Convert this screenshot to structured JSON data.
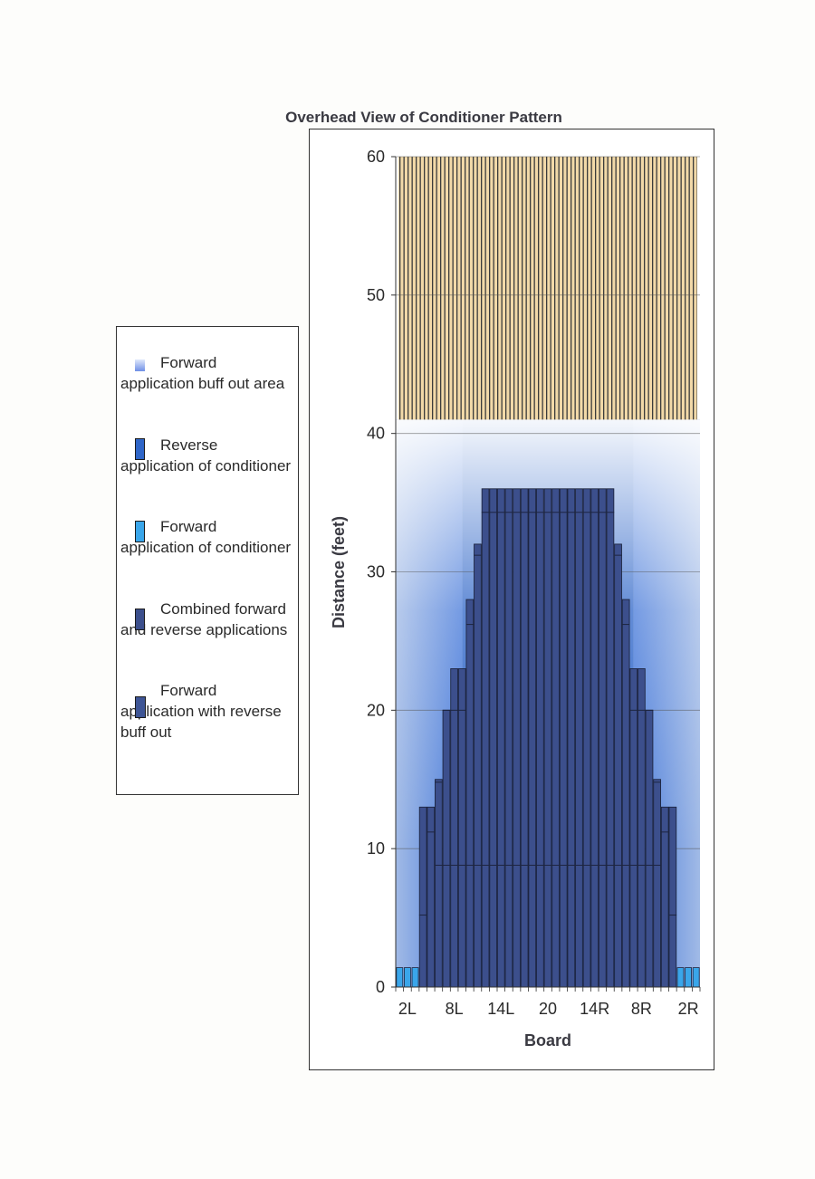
{
  "page": {
    "title": "Overhead View of Conditioner Pattern"
  },
  "legend": {
    "items": [
      {
        "label": "Forward application buff out area",
        "color": "#6f8fe6"
      },
      {
        "label": "Reverse application of conditioner",
        "color": "#2f66c8"
      },
      {
        "label": "Forward application of conditioner",
        "color": "#3aa6ea"
      },
      {
        "label": "Combined forward and reverse applications",
        "color": "#3c4f8c"
      },
      {
        "label": "Forward application with reverse buff out",
        "color": "#3e5595"
      }
    ]
  },
  "chart_data": {
    "type": "bar",
    "title": "Overhead View of Conditioner Pattern",
    "xlabel": "Board",
    "ylabel": "Distance (feet)",
    "ylim": [
      0,
      60
    ],
    "yticks": [
      0,
      10,
      20,
      30,
      40,
      50,
      60
    ],
    "grid": "horizontal",
    "legend_position": "left",
    "x_tick_labels": [
      "2L",
      "8L",
      "14L",
      "20",
      "14R",
      "8R",
      "2R"
    ],
    "boards": [
      "1L",
      "2L",
      "3L",
      "4L",
      "5L",
      "6L",
      "7L",
      "8L",
      "9L",
      "10L",
      "11L",
      "12L",
      "13L",
      "14L",
      "15L",
      "16L",
      "17L",
      "18L",
      "19L",
      "20",
      "19R",
      "18R",
      "17R",
      "16R",
      "15R",
      "14R",
      "13R",
      "12R",
      "11R",
      "10R",
      "9R",
      "8R",
      "7R",
      "6R",
      "5R",
      "4R",
      "3R",
      "2R",
      "1R"
    ],
    "forward_application_of_conditioner_ft": [
      1.4,
      1.4,
      1.4,
      1.4,
      1.4,
      1.4,
      1.4,
      1.4,
      1.4,
      1.4,
      1.4,
      1.4,
      1.4,
      1.4,
      1.4,
      1.4,
      1.4,
      1.4,
      1.4,
      1.4,
      1.4,
      1.4,
      1.4,
      1.4,
      1.4,
      1.4,
      1.4,
      1.4,
      1.4,
      1.4,
      1.4,
      1.4,
      1.4,
      1.4,
      1.4,
      1.4,
      1.4,
      1.4,
      1.4
    ],
    "combined_forward_and_reverse_ft": [
      0,
      0,
      0,
      13,
      13,
      15,
      20,
      23,
      23,
      28,
      32,
      36,
      36,
      36,
      36,
      36,
      36,
      36,
      36,
      36,
      36,
      36,
      36,
      36,
      36,
      36,
      36,
      36,
      32,
      28,
      23,
      23,
      20,
      15,
      13,
      13,
      0,
      0,
      0
    ],
    "reverse_buff_out_ft": [
      0,
      0,
      0,
      5.2,
      11.2,
      14.8,
      20,
      20,
      20,
      26.2,
      31.2,
      34.3,
      34.3,
      34.3,
      34.3,
      34.3,
      34.3,
      34.3,
      34.3,
      34.3,
      34.3,
      34.3,
      34.3,
      34.3,
      34.3,
      34.3,
      34.3,
      34.3,
      31.2,
      26.2,
      20,
      20,
      20,
      14.8,
      11.2,
      5.2,
      0,
      0,
      0
    ],
    "reverse_application_of_conditioner_ft": 41,
    "forward_application_buff_out_area_ft": 41,
    "oil_free_zone_ft": [
      41,
      60
    ],
    "reference_line_ft": 8.8
  }
}
